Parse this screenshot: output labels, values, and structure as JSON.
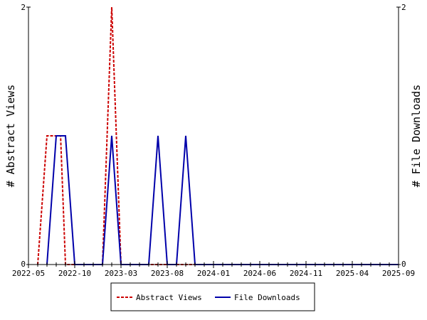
{
  "chart_data": {
    "type": "line",
    "x_ticks": [
      "2022-05",
      "2022-10",
      "2023-03",
      "2023-08",
      "2024-01",
      "2024-06",
      "2024-11",
      "2025-04",
      "2025-09"
    ],
    "y_left_label": "# Abstract Views",
    "y_right_label": "# File Downloads",
    "ylim": [
      0,
      2
    ],
    "y_left_ticks": [
      "0",
      "2"
    ],
    "y_right_ticks": [
      "0",
      "2"
    ],
    "legend_position": "bottom",
    "grid": false,
    "series": [
      {
        "name": "Abstract Views",
        "color": "#cc0000",
        "style": "dashed",
        "points": [
          [
            "2022-06-01",
            0
          ],
          [
            "2022-07-01",
            1
          ],
          [
            "2022-08-01",
            1
          ],
          [
            "2022-08-15",
            1
          ],
          [
            "2022-09-01",
            0
          ],
          [
            "2023-01-01",
            0
          ],
          [
            "2023-02-01",
            2
          ],
          [
            "2023-03-01",
            0
          ],
          [
            "2025-09-01",
            0
          ]
        ]
      },
      {
        "name": "File Downloads",
        "color": "#0000aa",
        "style": "solid",
        "points": [
          [
            "2022-07-01",
            0
          ],
          [
            "2022-08-01",
            1
          ],
          [
            "2022-09-01",
            1
          ],
          [
            "2022-10-01",
            0
          ],
          [
            "2023-01-01",
            0
          ],
          [
            "2023-02-01",
            1
          ],
          [
            "2023-03-01",
            0
          ],
          [
            "2023-06-01",
            0
          ],
          [
            "2023-07-01",
            1
          ],
          [
            "2023-08-01",
            0
          ],
          [
            "2023-09-01",
            0
          ],
          [
            "2023-10-01",
            1
          ],
          [
            "2023-11-01",
            0
          ],
          [
            "2025-09-01",
            0
          ]
        ]
      }
    ]
  }
}
